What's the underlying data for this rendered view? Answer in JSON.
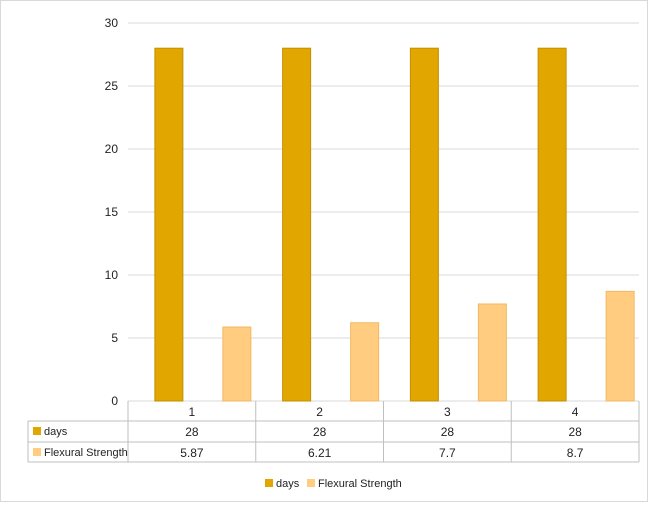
{
  "chart_data": {
    "type": "bar",
    "categories": [
      "1",
      "2",
      "3",
      "4"
    ],
    "series": [
      {
        "name": "days",
        "values": [
          28,
          28,
          28,
          28
        ],
        "color": "#E2A600"
      },
      {
        "name": "Flexural Strength",
        "values": [
          5.87,
          6.21,
          7.7,
          8.7
        ],
        "color": "#FFCC80"
      }
    ],
    "table_values": [
      [
        "28",
        "28",
        "28",
        "28"
      ],
      [
        "5.87",
        "6.21",
        "7.7",
        "8.7"
      ]
    ],
    "ylim": [
      0,
      30
    ],
    "yticks": [
      "0",
      "5",
      "10",
      "15",
      "20",
      "25",
      "30"
    ],
    "grid": true,
    "legend_position": "bottom",
    "data_table": true
  }
}
